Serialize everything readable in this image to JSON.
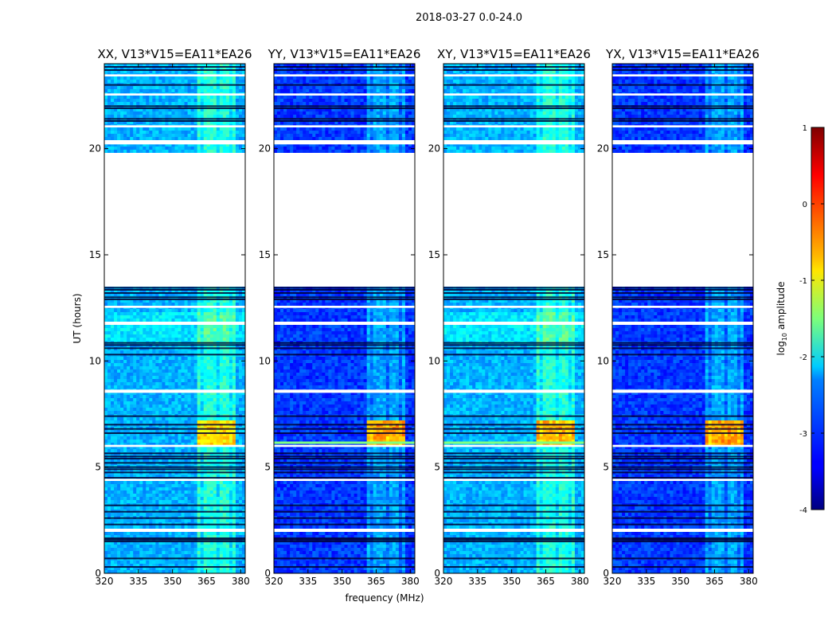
{
  "figure": {
    "suptitle": "2018-03-27 0.0-24.0",
    "ylabel": "UT (hours)",
    "xlabel": "frequency (MHz)"
  },
  "chart_data": {
    "type": "heatmap",
    "title": "2018-03-27 0.0-24.0",
    "xlabel": "frequency (MHz)",
    "ylabel": "UT (hours)",
    "xlim": [
      320,
      382
    ],
    "ylim": [
      0,
      24
    ],
    "xticks": [
      320,
      335,
      350,
      365,
      380
    ],
    "yticks": [
      0,
      5,
      10,
      15,
      20
    ],
    "panels": [
      {
        "title": "XX, V13*V15=EA11*EA26",
        "base_log_amp": -2.5,
        "band_peak_log_amp": -0.6,
        "band_range_mhz": [
          361.5,
          378
        ],
        "flag_bright_line": false
      },
      {
        "title": "YY, V13*V15=EA11*EA26",
        "base_log_amp": -3.1,
        "band_peak_log_amp": -0.3,
        "band_range_mhz": [
          361.5,
          378
        ],
        "flag_bright_line": true
      },
      {
        "title": "XY, V13*V15=EA11*EA26",
        "base_log_amp": -2.5,
        "band_peak_log_amp": -0.4,
        "band_range_mhz": [
          361.5,
          378
        ],
        "flag_bright_line": true
      },
      {
        "title": "YX, V13*V15=EA11*EA26",
        "base_log_amp": -3.1,
        "band_peak_log_amp": -0.3,
        "band_range_mhz": [
          361.5,
          378
        ],
        "flag_bright_line": false
      }
    ],
    "rfi_channels_mhz": [
      361.5,
      365.5,
      368,
      372,
      374,
      378
    ],
    "flagged_gaps_hours": [
      [
        13.5,
        19.8
      ],
      [
        20.2,
        20.4
      ],
      [
        8.5,
        8.65
      ],
      [
        1.95,
        2.1
      ],
      [
        11.7,
        11.85
      ],
      [
        12.5,
        12.6
      ],
      [
        4.35,
        4.45
      ],
      [
        5.95,
        6.05
      ],
      [
        22.5,
        22.6
      ],
      [
        21.0,
        21.1
      ],
      [
        23.4,
        23.5
      ]
    ],
    "dark_rows_hours": [
      1.5,
      1.58,
      1.65,
      0.3,
      0.7,
      2.3,
      2.6,
      2.9,
      3.2,
      4.5,
      4.75,
      4.9,
      5.0,
      5.2,
      5.4,
      5.5,
      5.65,
      6.6,
      6.8,
      7.0,
      7.4,
      10.3,
      10.6,
      10.75,
      10.85,
      12.9,
      13.0,
      13.2,
      13.35,
      13.45,
      21.3,
      21.4,
      21.9,
      22.0,
      23.0,
      23.7,
      23.85
    ],
    "hot_band_hours": [
      6.05,
      7.35
    ],
    "colorbar": {
      "label": "log10 amplitude",
      "range": [
        -4,
        1
      ],
      "ticks": [
        1,
        0,
        -1,
        -2,
        -3,
        -4
      ]
    }
  }
}
